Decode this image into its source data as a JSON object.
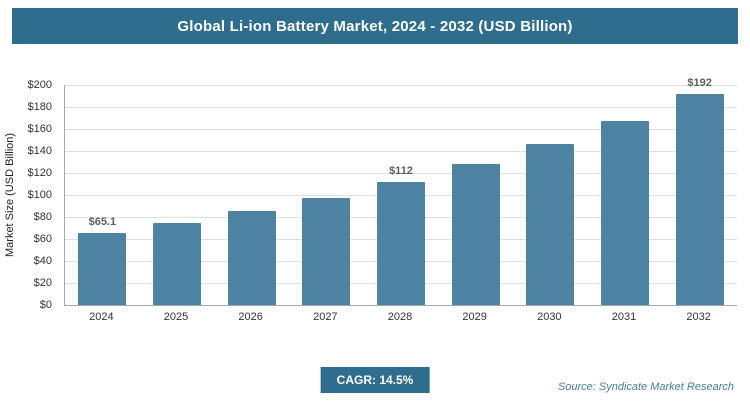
{
  "chart_data": {
    "type": "bar",
    "title": "Global Li-ion Battery Market, 2024 - 2032 (USD Billion)",
    "categories": [
      "2024",
      "2025",
      "2026",
      "2027",
      "2028",
      "2029",
      "2030",
      "2031",
      "2032"
    ],
    "values": [
      65.1,
      74.5,
      85.3,
      97.6,
      111.8,
      128.0,
      146.5,
      167.7,
      192.0
    ],
    "data_labels": [
      "$65.1",
      null,
      null,
      null,
      "$112",
      null,
      null,
      null,
      "$192"
    ],
    "xlabel": "",
    "ylabel": "Market Size (USD Billion)",
    "ylim": [
      0,
      200
    ],
    "ytick_step": 20,
    "yticks": [
      "$0",
      "$20",
      "$40",
      "$60",
      "$80",
      "$100",
      "$120",
      "$140",
      "$160",
      "$180",
      "$200"
    ],
    "grid": true,
    "legend": "none"
  },
  "footer": {
    "cagr_label": "CAGR: 14.5%",
    "source": "Source: Syndicate Market Research"
  },
  "colors": {
    "header_bg": "#2e6d8e",
    "bar": "#4d82a2",
    "badge_bg": "#2e6d8e",
    "source_text": "#4a7d99"
  }
}
